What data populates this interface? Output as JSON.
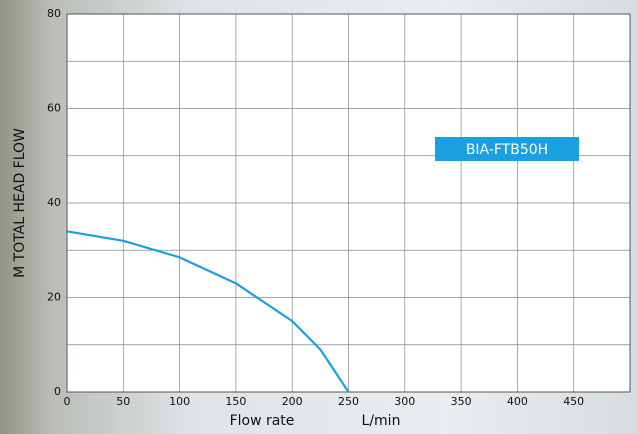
{
  "chart_data": {
    "type": "line",
    "y_label": "M TOTAL HEAD FLOW",
    "x_label": "Flow rate",
    "x_unit": "L/min",
    "x": [
      0,
      50,
      100,
      150,
      200,
      225,
      250
    ],
    "series": [
      {
        "name": "BIA-FTB50H",
        "color": "#1a9fe0",
        "values": [
          34,
          32,
          28.5,
          23,
          15,
          9,
          0
        ]
      }
    ],
    "xlim": [
      0,
      500
    ],
    "xticks": [
      0,
      50,
      100,
      150,
      200,
      250,
      300,
      350,
      400,
      450
    ],
    "ylim": [
      0,
      80
    ],
    "yticks": [
      0,
      20,
      40,
      60,
      80
    ],
    "y_minor_grid": [
      10,
      30,
      50,
      70
    ],
    "grid": true
  }
}
